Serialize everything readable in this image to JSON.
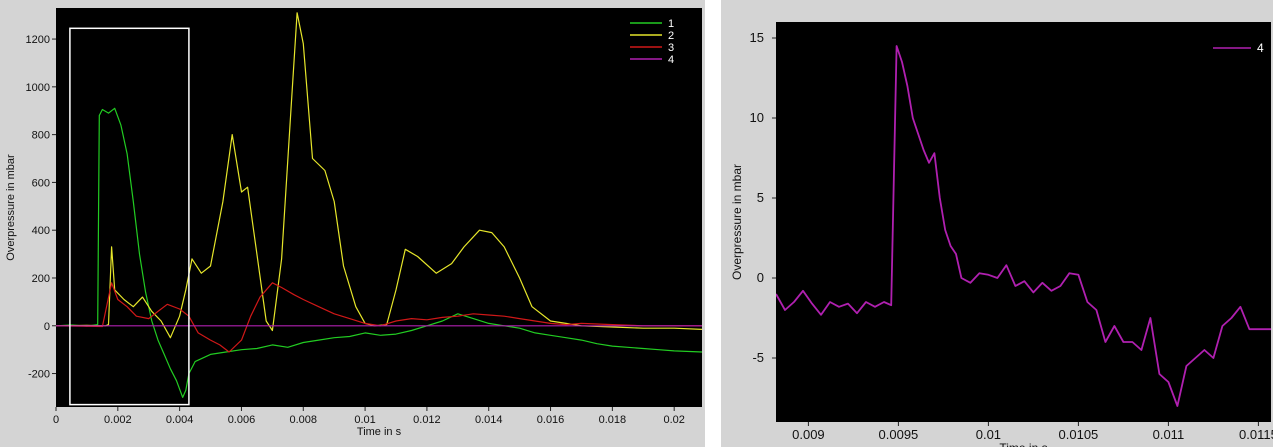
{
  "colors": {
    "panel_bg": "#d4d4d4",
    "plot_bg": "#000000",
    "series_1": "#22cc22",
    "series_2": "#e6e62a",
    "series_3": "#d01818",
    "series_4": "#b020b0",
    "highlight_box": "#ffffff"
  },
  "chart_data": [
    {
      "type": "line",
      "title": "",
      "xlabel": "Time in s",
      "ylabel": "Overpressure in mbar",
      "xlim": [
        0,
        0.0209
      ],
      "ylim": [
        -340,
        1330
      ],
      "x_ticks": [
        0,
        0.002,
        0.004,
        0.006,
        0.008,
        0.01,
        0.012,
        0.014,
        0.016,
        0.018,
        0.02
      ],
      "x_tick_labels": [
        "0",
        "0.002",
        "0.004",
        "0.006",
        "0.008",
        "0.01",
        "0.012",
        "0.014",
        "0.016",
        "0.018",
        "0.02"
      ],
      "y_ticks": [
        -200,
        0,
        200,
        400,
        600,
        800,
        1000,
        1200
      ],
      "y_tick_labels": [
        "-200",
        "0",
        "200",
        "400",
        "600",
        "800",
        "1000",
        "1200"
      ],
      "grid": false,
      "legend_position": "top-right",
      "highlight_box": {
        "x": [
          0.00045,
          0.0043
        ],
        "y": [
          -330,
          1245
        ]
      },
      "series": [
        {
          "name": "1",
          "color_key": "series_1",
          "x": [
            0,
            0.0005,
            0.001,
            0.00135,
            0.0014,
            0.0015,
            0.0017,
            0.0019,
            0.0021,
            0.0023,
            0.0025,
            0.0027,
            0.0029,
            0.0031,
            0.0033,
            0.0035,
            0.0037,
            0.0039,
            0.0041,
            0.0042,
            0.0043,
            0.0045,
            0.005,
            0.0055,
            0.006,
            0.0065,
            0.007,
            0.0075,
            0.008,
            0.0085,
            0.009,
            0.0095,
            0.01,
            0.0105,
            0.011,
            0.0115,
            0.012,
            0.0125,
            0.013,
            0.0135,
            0.014,
            0.0145,
            0.015,
            0.0155,
            0.016,
            0.0165,
            0.017,
            0.0175,
            0.018,
            0.0185,
            0.019,
            0.0195,
            0.02,
            0.0209
          ],
          "values": [
            0,
            3,
            -2,
            5,
            880,
            905,
            890,
            910,
            840,
            720,
            520,
            300,
            140,
            20,
            -60,
            -120,
            -180,
            -230,
            -300,
            -270,
            -200,
            -150,
            -120,
            -110,
            -100,
            -95,
            -80,
            -90,
            -70,
            -60,
            -50,
            -45,
            -30,
            -40,
            -35,
            -20,
            0,
            20,
            50,
            30,
            10,
            0,
            -10,
            -30,
            -40,
            -50,
            -60,
            -75,
            -85,
            -90,
            -95,
            -100,
            -105,
            -110
          ]
        },
        {
          "name": "2",
          "color_key": "series_2",
          "x": [
            0,
            0.001,
            0.0016,
            0.0017,
            0.0018,
            0.0019,
            0.0022,
            0.0025,
            0.0028,
            0.0031,
            0.0034,
            0.0037,
            0.004,
            0.0042,
            0.0044,
            0.0047,
            0.005,
            0.0054,
            0.0057,
            0.006,
            0.0062,
            0.0065,
            0.0068,
            0.007,
            0.0073,
            0.0076,
            0.0078,
            0.008,
            0.0083,
            0.0087,
            0.009,
            0.0093,
            0.0097,
            0.01,
            0.0103,
            0.0107,
            0.011,
            0.0113,
            0.0117,
            0.0123,
            0.0128,
            0.0132,
            0.0137,
            0.0141,
            0.0145,
            0.015,
            0.0154,
            0.016,
            0.0165,
            0.017,
            0.018,
            0.019,
            0.02,
            0.0209
          ],
          "values": [
            0,
            2,
            0,
            5,
            330,
            150,
            110,
            80,
            120,
            60,
            20,
            -50,
            40,
            150,
            280,
            220,
            250,
            520,
            800,
            560,
            580,
            300,
            20,
            -20,
            280,
            900,
            1310,
            1180,
            700,
            650,
            520,
            250,
            80,
            10,
            0,
            5,
            150,
            320,
            290,
            220,
            260,
            330,
            400,
            390,
            330,
            200,
            80,
            20,
            10,
            0,
            -5,
            -10,
            -10,
            -15
          ]
        },
        {
          "name": "3",
          "color_key": "series_3",
          "x": [
            0,
            0.0015,
            0.0018,
            0.002,
            0.0023,
            0.0026,
            0.003,
            0.0033,
            0.0036,
            0.004,
            0.0043,
            0.0046,
            0.005,
            0.0053,
            0.0056,
            0.006,
            0.0063,
            0.0066,
            0.007,
            0.0073,
            0.0077,
            0.008,
            0.0085,
            0.009,
            0.0095,
            0.01,
            0.0105,
            0.011,
            0.0115,
            0.012,
            0.0125,
            0.013,
            0.0135,
            0.014,
            0.0145,
            0.015,
            0.0155,
            0.016,
            0.0165,
            0.017,
            0.018,
            0.019,
            0.02,
            0.0209
          ],
          "values": [
            0,
            -3,
            180,
            110,
            80,
            40,
            30,
            60,
            90,
            70,
            40,
            -30,
            -60,
            -80,
            -110,
            -60,
            40,
            120,
            180,
            160,
            130,
            110,
            80,
            50,
            30,
            10,
            0,
            20,
            30,
            25,
            35,
            40,
            50,
            45,
            40,
            30,
            20,
            10,
            5,
            10,
            5,
            0,
            0,
            0
          ]
        },
        {
          "name": "4",
          "color_key": "series_4",
          "x": [
            0,
            0.0209
          ],
          "values": [
            0,
            0
          ]
        }
      ]
    },
    {
      "type": "line",
      "title": "",
      "xlabel": "Time in s",
      "ylabel": "Overpressure in mbar",
      "xlim": [
        0.00882,
        0.01157
      ],
      "ylim": [
        -9,
        16
      ],
      "x_ticks": [
        0.009,
        0.0095,
        0.01,
        0.0105,
        0.011,
        0.0115
      ],
      "x_tick_labels": [
        "0.009",
        "0.0095",
        "0.01",
        "0.0105",
        "0.011",
        "0.0115"
      ],
      "y_ticks": [
        -5,
        0,
        5,
        10,
        15
      ],
      "y_tick_labels": [
        "-5",
        "0",
        "5",
        "10",
        "15"
      ],
      "grid": false,
      "legend_position": "top-right",
      "series": [
        {
          "name": "4",
          "color_key": "series_4",
          "x": [
            0.00882,
            0.00887,
            0.00892,
            0.00897,
            0.00902,
            0.00907,
            0.00912,
            0.00917,
            0.00922,
            0.00927,
            0.00932,
            0.00937,
            0.00942,
            0.00946,
            0.00949,
            0.00952,
            0.00955,
            0.00958,
            0.00961,
            0.00964,
            0.00967,
            0.0097,
            0.00973,
            0.00976,
            0.00979,
            0.00982,
            0.00985,
            0.0099,
            0.00995,
            0.01,
            0.01005,
            0.0101,
            0.01015,
            0.0102,
            0.01025,
            0.0103,
            0.01035,
            0.0104,
            0.01045,
            0.0105,
            0.01055,
            0.0106,
            0.01065,
            0.0107,
            0.01075,
            0.0108,
            0.01085,
            0.0109,
            0.01095,
            0.011,
            0.01105,
            0.0111,
            0.01115,
            0.0112,
            0.01125,
            0.0113,
            0.01135,
            0.0114,
            0.01145,
            0.0115,
            0.01157
          ],
          "values": [
            -1,
            -2,
            -1.5,
            -0.8,
            -1.6,
            -2.3,
            -1.5,
            -1.8,
            -1.6,
            -2.2,
            -1.5,
            -1.8,
            -1.5,
            -1.7,
            14.5,
            13.5,
            12,
            10,
            9,
            8,
            7.2,
            7.8,
            5,
            3,
            2,
            1.5,
            0,
            -0.3,
            0.3,
            0.2,
            0,
            0.8,
            -0.5,
            -0.2,
            -0.9,
            -0.3,
            -0.8,
            -0.5,
            0.3,
            0.2,
            -1.5,
            -2,
            -4,
            -3,
            -4,
            -4,
            -4.5,
            -2.5,
            -6,
            -6.5,
            -8,
            -5.5,
            -5,
            -4.5,
            -5,
            -3,
            -2.5,
            -1.8,
            -3.2,
            -3.2,
            -3.2
          ]
        }
      ]
    }
  ]
}
